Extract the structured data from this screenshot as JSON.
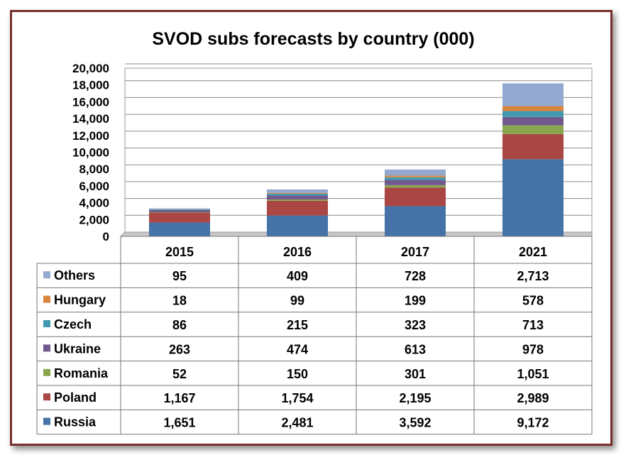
{
  "chart_data": {
    "type": "bar",
    "stacked": true,
    "title": "SVOD subs forecasts by country (000)",
    "categories": [
      "2015",
      "2016",
      "2017",
      "2021"
    ],
    "ylim": [
      0,
      20000
    ],
    "yticks": [
      "0",
      "2,000",
      "4,000",
      "6,000",
      "8,000",
      "10,000",
      "12,000",
      "14,000",
      "16,000",
      "18,000",
      "20,000"
    ],
    "grid": true,
    "legend_position": "data-table",
    "series": [
      {
        "name": "Russia",
        "color": "#4572a7",
        "values": [
          1651,
          2481,
          3592,
          9172
        ],
        "labels": [
          "1,651",
          "2,481",
          "3,592",
          "9,172"
        ]
      },
      {
        "name": "Poland",
        "color": "#aa4643",
        "values": [
          1167,
          1754,
          2195,
          2989
        ],
        "labels": [
          "1,167",
          "1,754",
          "2,195",
          "2,989"
        ]
      },
      {
        "name": "Romania",
        "color": "#89a54e",
        "values": [
          52,
          150,
          301,
          1051
        ],
        "labels": [
          "52",
          "150",
          "301",
          "1,051"
        ]
      },
      {
        "name": "Ukraine",
        "color": "#71588f",
        "values": [
          263,
          474,
          613,
          978
        ],
        "labels": [
          "263",
          "474",
          "613",
          "978"
        ]
      },
      {
        "name": "Czech",
        "color": "#4198af",
        "values": [
          86,
          215,
          323,
          713
        ],
        "labels": [
          "86",
          "215",
          "323",
          "713"
        ]
      },
      {
        "name": "Hungary",
        "color": "#db843d",
        "values": [
          18,
          99,
          199,
          578
        ],
        "labels": [
          "18",
          "99",
          "199",
          "578"
        ]
      },
      {
        "name": "Others",
        "color": "#93a9cf",
        "values": [
          95,
          409,
          728,
          2713
        ],
        "labels": [
          "95",
          "409",
          "728",
          "2,713"
        ]
      }
    ]
  }
}
